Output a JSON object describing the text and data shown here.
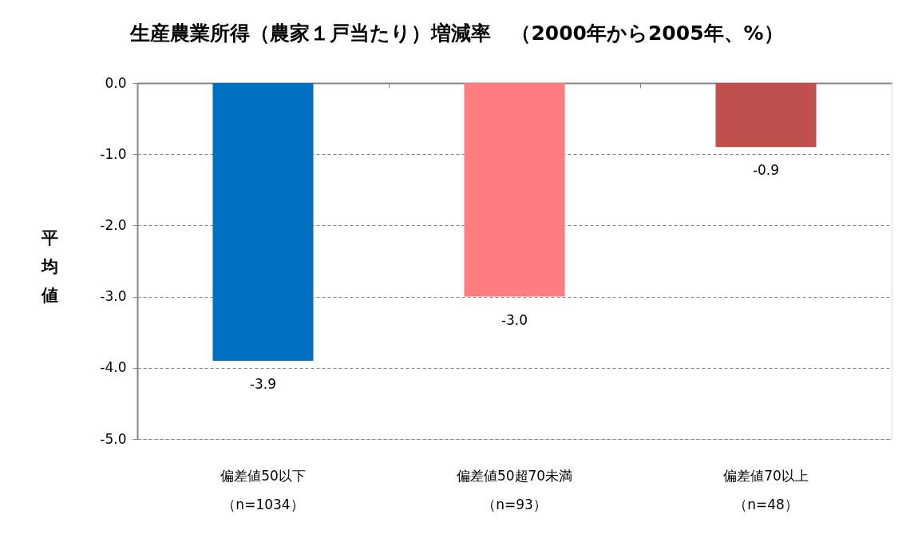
{
  "chart_data": {
    "type": "bar",
    "title": "生産農業所得（農家１戸当たり）増減率　（2000年から2005年、%）",
    "ylabel": "平均値",
    "categories": [
      "偏差値50以下（n=1034）",
      "偏差値50超70未満（n=93）",
      "偏差値70以上（n=48）"
    ],
    "values": [
      -3.9,
      -3.0,
      -0.9
    ],
    "value_labels": [
      "-3.9",
      "-3.0",
      "-0.9"
    ],
    "colors": [
      "#0070c0",
      "#ff7c80",
      "#c0504d"
    ],
    "ylim": [
      -5,
      0
    ],
    "yticks": [
      {
        "value": -5,
        "label": "-5.0"
      },
      {
        "value": -4,
        "label": "-4.0"
      },
      {
        "value": -3,
        "label": "-3.0"
      },
      {
        "value": -2,
        "label": "-2.0"
      },
      {
        "value": -1,
        "label": "-1.0"
      },
      {
        "value": 0,
        "label": "0.0"
      }
    ],
    "grid": "y"
  }
}
